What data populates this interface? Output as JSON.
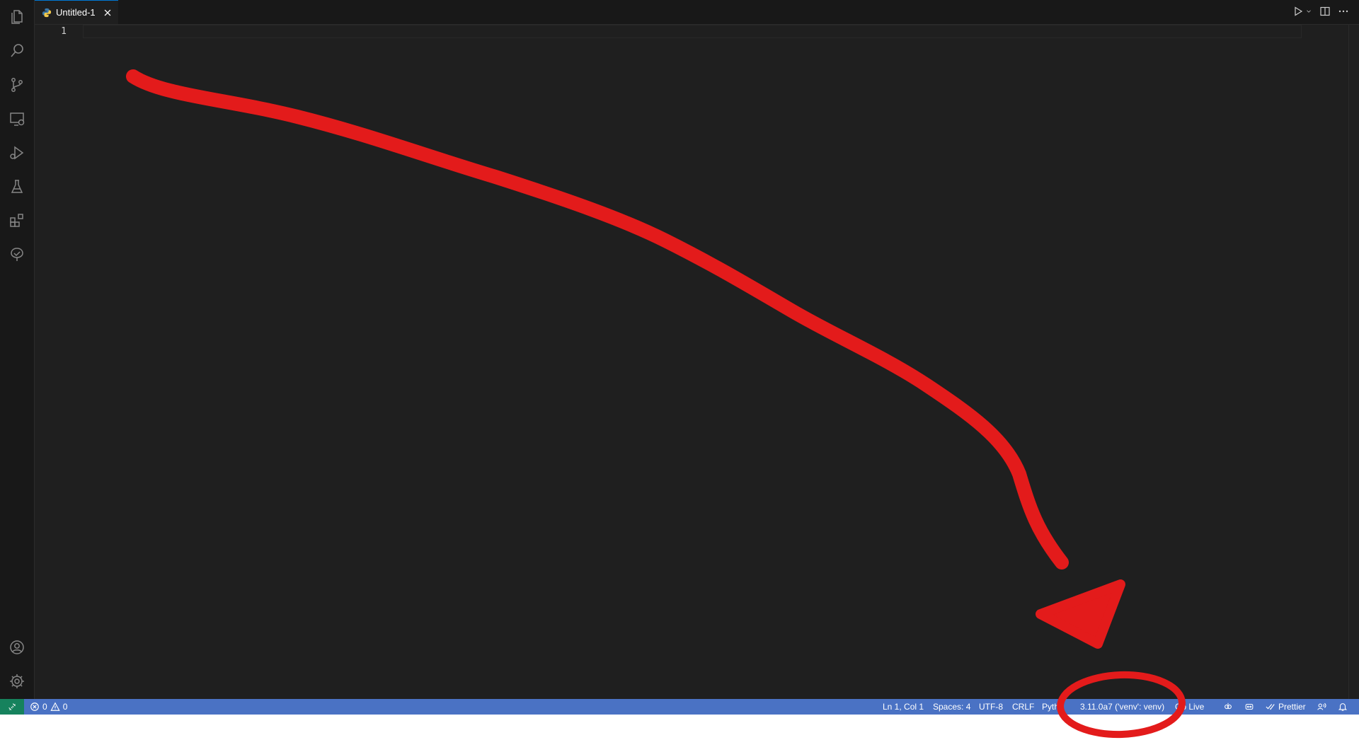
{
  "tab": {
    "label": "Untitled-1",
    "icon": "python-file-icon"
  },
  "editor": {
    "line_number": "1"
  },
  "activity_bar": [
    {
      "name": "explorer-icon"
    },
    {
      "name": "search-icon"
    },
    {
      "name": "source-control-icon"
    },
    {
      "name": "remote-explorer-icon"
    },
    {
      "name": "run-debug-icon"
    },
    {
      "name": "testing-icon"
    },
    {
      "name": "extensions-icon"
    },
    {
      "name": "tree-check-icon"
    },
    {
      "name": "accounts-icon"
    },
    {
      "name": "settings-gear-icon"
    }
  ],
  "status": {
    "errors": "0",
    "warnings": "0",
    "cursor": "Ln 1, Col 1",
    "spaces": "Spaces: 4",
    "encoding": "UTF-8",
    "eol": "CRLF",
    "language": "Pyth",
    "interpreter": "3.11.0a7 ('venv': venv)",
    "go_live": "Go Live",
    "prettier": "Prettier"
  },
  "colors": {
    "statusbar": "#4a72c4",
    "remote": "#16825d",
    "annotation": "#e31b1b"
  }
}
